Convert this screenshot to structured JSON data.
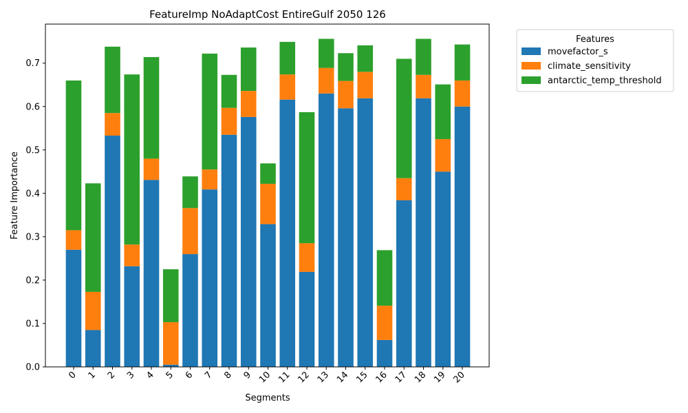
{
  "chart_data": {
    "type": "bar",
    "stacked": true,
    "title": "FeatureImp NoAdaptCost EntireGulf 2050 126",
    "xlabel": "Segments",
    "ylabel": "Feature Importance",
    "ylim": [
      0,
      0.79
    ],
    "yticks": [
      "0.0",
      "0.1",
      "0.2",
      "0.3",
      "0.4",
      "0.5",
      "0.6",
      "0.7"
    ],
    "grid": false,
    "legend": {
      "title": "Features",
      "placement": "outside-top-right"
    },
    "categories": [
      "0",
      "1",
      "2",
      "3",
      "4",
      "5",
      "6",
      "7",
      "8",
      "9",
      "10",
      "11",
      "12",
      "13",
      "14",
      "15",
      "16",
      "17",
      "18",
      "19",
      "20"
    ],
    "series": [
      {
        "name": "movefactor_s",
        "color": "#1f77b4",
        "values": [
          0.27,
          0.085,
          0.533,
          0.232,
          0.431,
          0.005,
          0.26,
          0.409,
          0.535,
          0.576,
          0.329,
          0.616,
          0.219,
          0.63,
          0.596,
          0.619,
          0.062,
          0.384,
          0.619,
          0.45,
          0.6
        ]
      },
      {
        "name": "climate_sensitivity",
        "color": "#ff7f0e",
        "values": [
          0.045,
          0.088,
          0.052,
          0.05,
          0.049,
          0.098,
          0.106,
          0.046,
          0.062,
          0.06,
          0.093,
          0.058,
          0.066,
          0.059,
          0.063,
          0.061,
          0.079,
          0.051,
          0.054,
          0.075,
          0.06
        ]
      },
      {
        "name": "antarctic_temp_threshold",
        "color": "#2ca02c",
        "values": [
          0.345,
          0.25,
          0.153,
          0.392,
          0.234,
          0.122,
          0.073,
          0.267,
          0.076,
          0.1,
          0.047,
          0.075,
          0.302,
          0.067,
          0.064,
          0.061,
          0.128,
          0.275,
          0.083,
          0.126,
          0.083
        ]
      }
    ]
  }
}
